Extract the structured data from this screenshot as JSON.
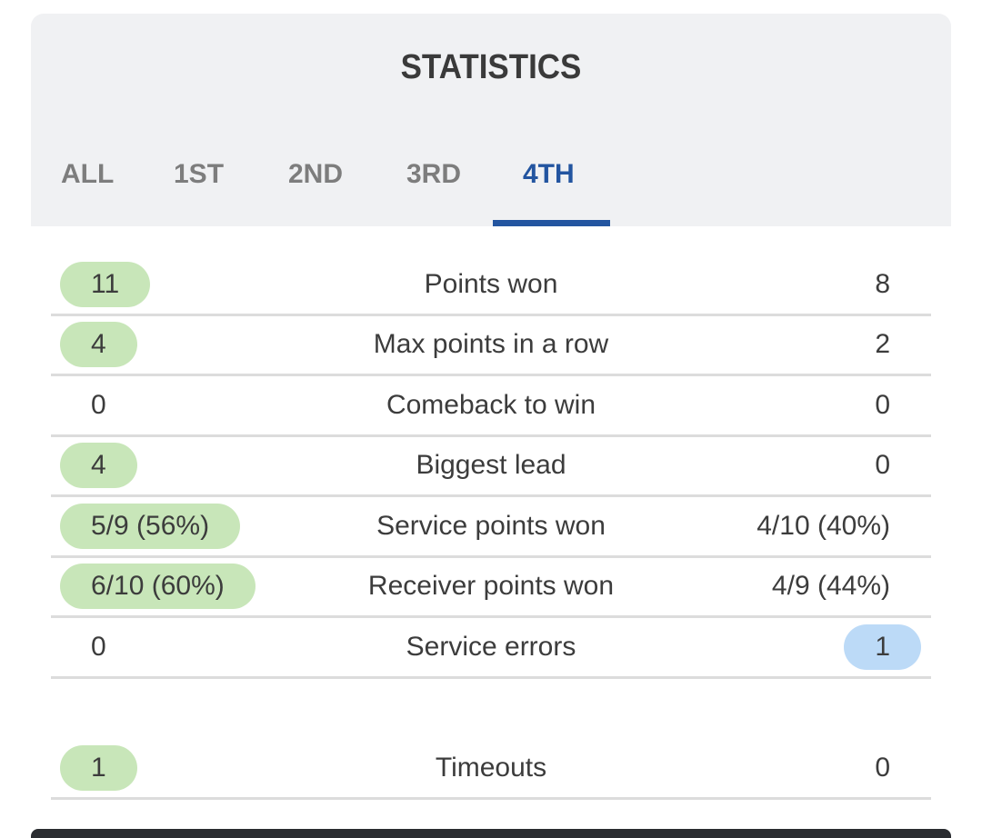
{
  "header": {
    "title": "STATISTICS"
  },
  "tabs": [
    "ALL",
    "1ST",
    "2ND",
    "3RD",
    "4TH"
  ],
  "active_tab": "4TH",
  "colors": {
    "accent": "#2355a0",
    "home_highlight": "#c8e6b9",
    "away_highlight": "#bcdaf7"
  },
  "rows": [
    {
      "left": "11",
      "label": "Points won",
      "right": "8",
      "highlight": "left"
    },
    {
      "left": "4",
      "label": "Max points in a row",
      "right": "2",
      "highlight": "left"
    },
    {
      "left": "0",
      "label": "Comeback to win",
      "right": "0",
      "highlight": "none"
    },
    {
      "left": "4",
      "label": "Biggest lead",
      "right": "0",
      "highlight": "left"
    },
    {
      "left": "5/9 (56%)",
      "label": "Service points won",
      "right": "4/10 (40%)",
      "highlight": "left"
    },
    {
      "left": "6/10 (60%)",
      "label": "Receiver points won",
      "right": "4/9 (44%)",
      "highlight": "left"
    },
    {
      "left": "0",
      "label": "Service errors",
      "right": "1",
      "highlight": "right"
    },
    {
      "left": "1",
      "label": "Timeouts",
      "right": "0",
      "highlight": "left"
    }
  ]
}
